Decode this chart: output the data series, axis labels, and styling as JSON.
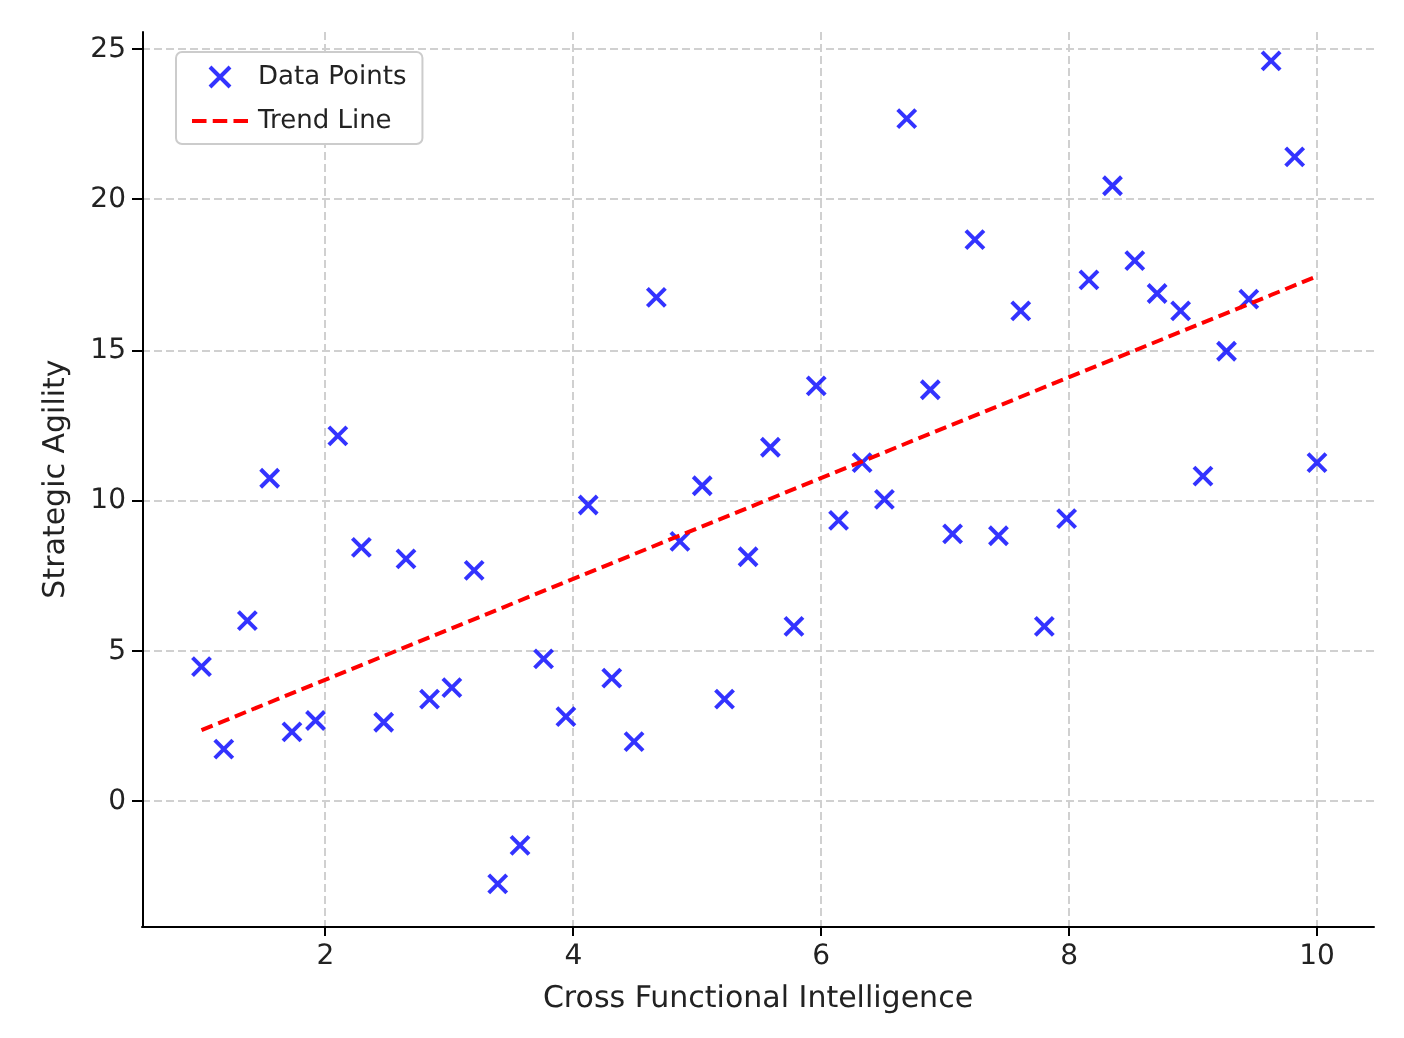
{
  "chart_data": {
    "type": "scatter",
    "xlabel": "Cross Functional Intelligence",
    "ylabel": "Strategic Agility",
    "xlim": [
      0.52,
      10.46
    ],
    "ylim": [
      -4.15,
      25.56
    ],
    "xticks": [
      2,
      4,
      6,
      8,
      10
    ],
    "yticks": [
      0,
      5,
      10,
      15,
      20,
      25
    ],
    "grid": true,
    "legend": "top left",
    "series": [
      {
        "name": "Data Points",
        "marker": "cross",
        "color": "#0000ff",
        "x": [
          1,
          1.18,
          1.37,
          1.55,
          1.73,
          1.92,
          2.1,
          2.29,
          2.47,
          2.65,
          2.84,
          3.02,
          3.2,
          3.39,
          3.57,
          3.76,
          3.94,
          4.12,
          4.31,
          4.49,
          4.67,
          4.86,
          5.04,
          5.22,
          5.41,
          5.59,
          5.78,
          5.96,
          6.14,
          6.33,
          6.51,
          6.69,
          6.88,
          7.06,
          7.24,
          7.43,
          7.61,
          7.8,
          7.98,
          8.16,
          8.35,
          8.53,
          8.71,
          8.9,
          9.08,
          9.27,
          9.45,
          9.63,
          9.82,
          10
        ],
        "values": [
          4.47,
          1.73,
          6.0,
          10.73,
          2.3,
          2.68,
          12.14,
          8.43,
          2.62,
          8.05,
          3.39,
          3.77,
          7.67,
          -2.75,
          -1.47,
          4.73,
          2.81,
          9.84,
          4.09,
          1.98,
          16.74,
          8.63,
          10.48,
          3.39,
          8.12,
          11.76,
          5.81,
          13.8,
          9.33,
          11.25,
          10.03,
          22.68,
          13.67,
          8.88,
          18.66,
          8.82,
          16.29,
          5.81,
          9.39,
          17.32,
          20.45,
          17.96,
          16.87,
          16.29,
          10.8,
          14.95,
          16.68,
          24.6,
          21.41,
          11.25
        ]
      },
      {
        "name": "Trend Line",
        "type": "line",
        "marker": "none",
        "line_style": "dashed",
        "color": "#ff0000",
        "x": [
          1,
          10
        ],
        "values": [
          2.36,
          17.44
        ]
      }
    ]
  }
}
